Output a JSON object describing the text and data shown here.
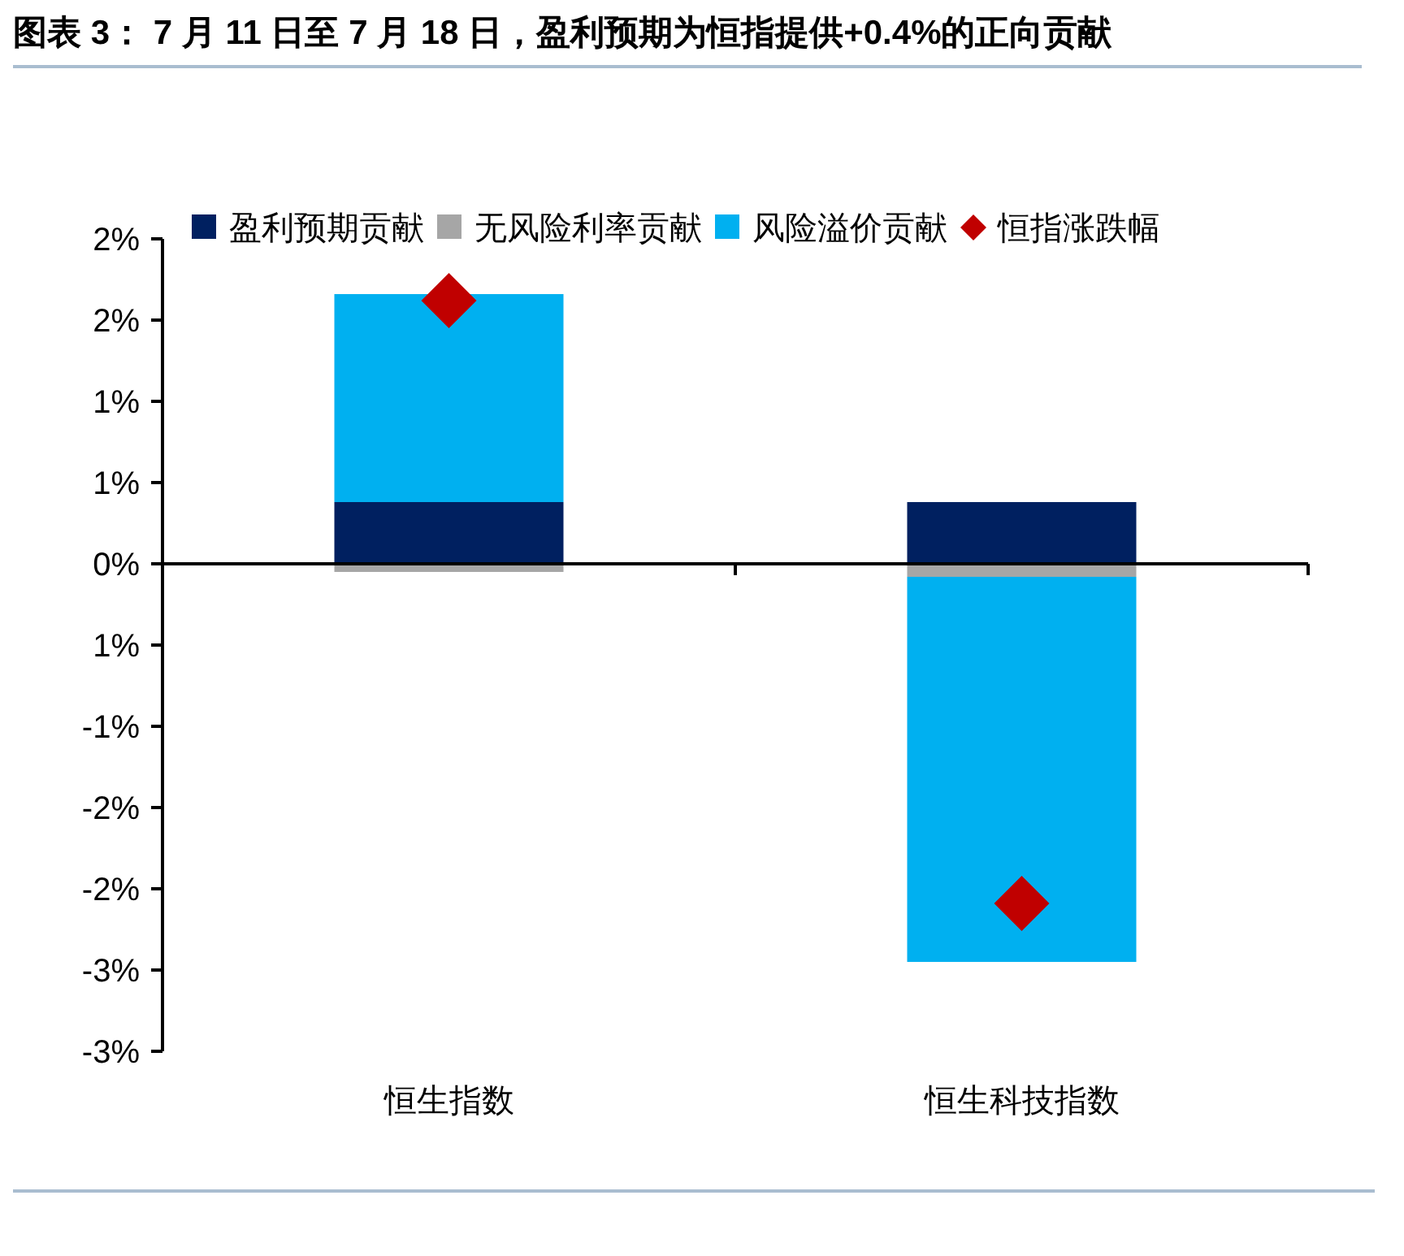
{
  "chart_data": {
    "type": "bar",
    "stacked": true,
    "title": "图表 3：  7 月 11 日至 7 月 18 日，盈利预期为恒指提供+0.4%的正向贡献",
    "categories": [
      "恒生指数",
      "恒生科技指数"
    ],
    "series": [
      {
        "name": "盈利预期贡献",
        "color": "#002060",
        "values": [
          0.38,
          0.38
        ]
      },
      {
        "name": "无风险利率贡献",
        "color": "#a6a6a6",
        "values": [
          -0.05,
          -0.08
        ]
      },
      {
        "name": "风险溢价贡献",
        "color": "#00b0f0",
        "values": [
          1.28,
          -2.37
        ]
      },
      {
        "name": "恒指涨跌幅",
        "type": "scatter",
        "marker": "diamond",
        "color": "#c00000",
        "values": [
          1.62,
          -2.09
        ]
      }
    ],
    "ylim": [
      -3,
      2
    ],
    "yticks": [
      {
        "value": 2,
        "label": "2%"
      },
      {
        "value": 1.5,
        "label": "2%"
      },
      {
        "value": 1,
        "label": "1%"
      },
      {
        "value": 0.5,
        "label": "1%"
      },
      {
        "value": 0,
        "label": "0%"
      },
      {
        "value": -0.5,
        "label": "1%"
      },
      {
        "value": -1,
        "label": "-1%"
      },
      {
        "value": -1.5,
        "label": "-2%"
      },
      {
        "value": -2,
        "label": "-2%"
      },
      {
        "value": -2.5,
        "label": "-3%"
      },
      {
        "value": -3,
        "label": "-3%"
      }
    ],
    "legend": "top"
  }
}
